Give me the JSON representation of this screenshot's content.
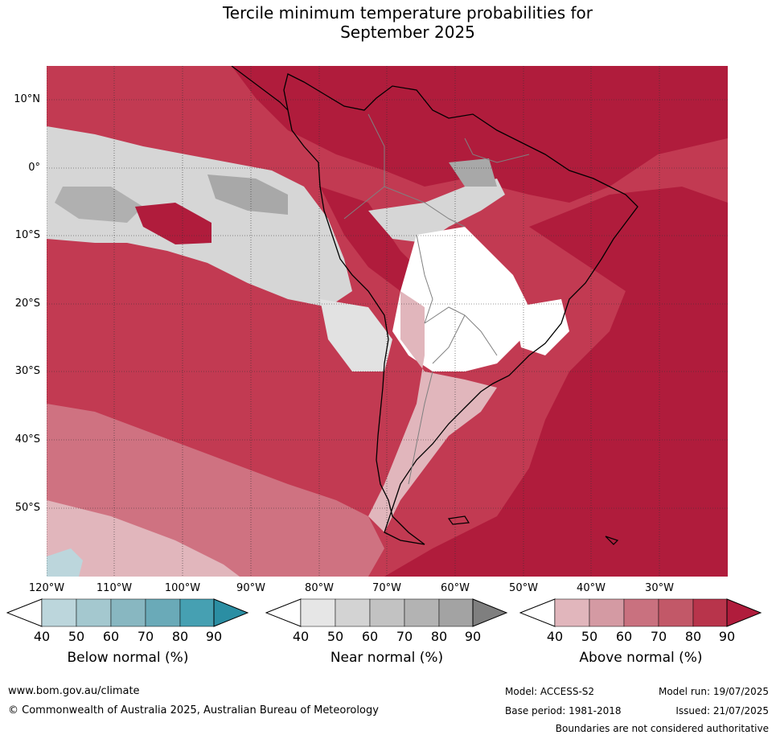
{
  "title": {
    "line1": "Tercile minimum temperature probabilities for",
    "line2": "September 2025"
  },
  "map": {
    "lat_labels": [
      "10°N",
      "0°",
      "10°S",
      "20°S",
      "30°S",
      "40°S",
      "50°S"
    ],
    "lon_labels": [
      "120°W",
      "110°W",
      "100°W",
      "90°W",
      "80°W",
      "70°W",
      "60°W",
      "50°W",
      "40°W",
      "30°W"
    ],
    "colors": {
      "sea_above": "#c23a52",
      "strong_above": "#b01c3c",
      "light_above": "#d9a0a8",
      "near": "#bdbdbd",
      "near_light": "#e2e2e2",
      "below_light": "#bcd6dc",
      "coast": "#000000",
      "borders": "#808080"
    }
  },
  "colorbars": [
    {
      "name": "Below normal (%)",
      "ticks": [
        "40",
        "50",
        "60",
        "70",
        "80",
        "90"
      ],
      "colors": [
        "#bcd6dc",
        "#a4c8cf",
        "#88b7c1",
        "#6aaab8",
        "#46a0b2",
        "#2b8ea3"
      ]
    },
    {
      "name": "Near normal (%)",
      "ticks": [
        "40",
        "50",
        "60",
        "70",
        "80",
        "90"
      ],
      "colors": [
        "#e6e6e6",
        "#d3d3d3",
        "#c2c2c2",
        "#b3b3b3",
        "#a3a3a3",
        "#7f7f7f"
      ]
    },
    {
      "name": "Above normal (%)",
      "ticks": [
        "40",
        "50",
        "60",
        "70",
        "80",
        "90"
      ],
      "colors": [
        "#e1b6bc",
        "#d49aa3",
        "#c9717f",
        "#c25868",
        "#b8344b",
        "#b01c3c"
      ]
    }
  ],
  "footer": {
    "website": "www.bom.gov.au/climate",
    "copyright": "© Commonwealth of Australia 2025, Australian Bureau of Meteorology",
    "model": "Model: ACCESS-S2",
    "base_period": "Base period: 1981-2018",
    "model_run": "Model run: 19/07/2025",
    "issued": "Issued: 21/07/2025",
    "disclaimer": "Boundaries are not considered authoritative"
  }
}
